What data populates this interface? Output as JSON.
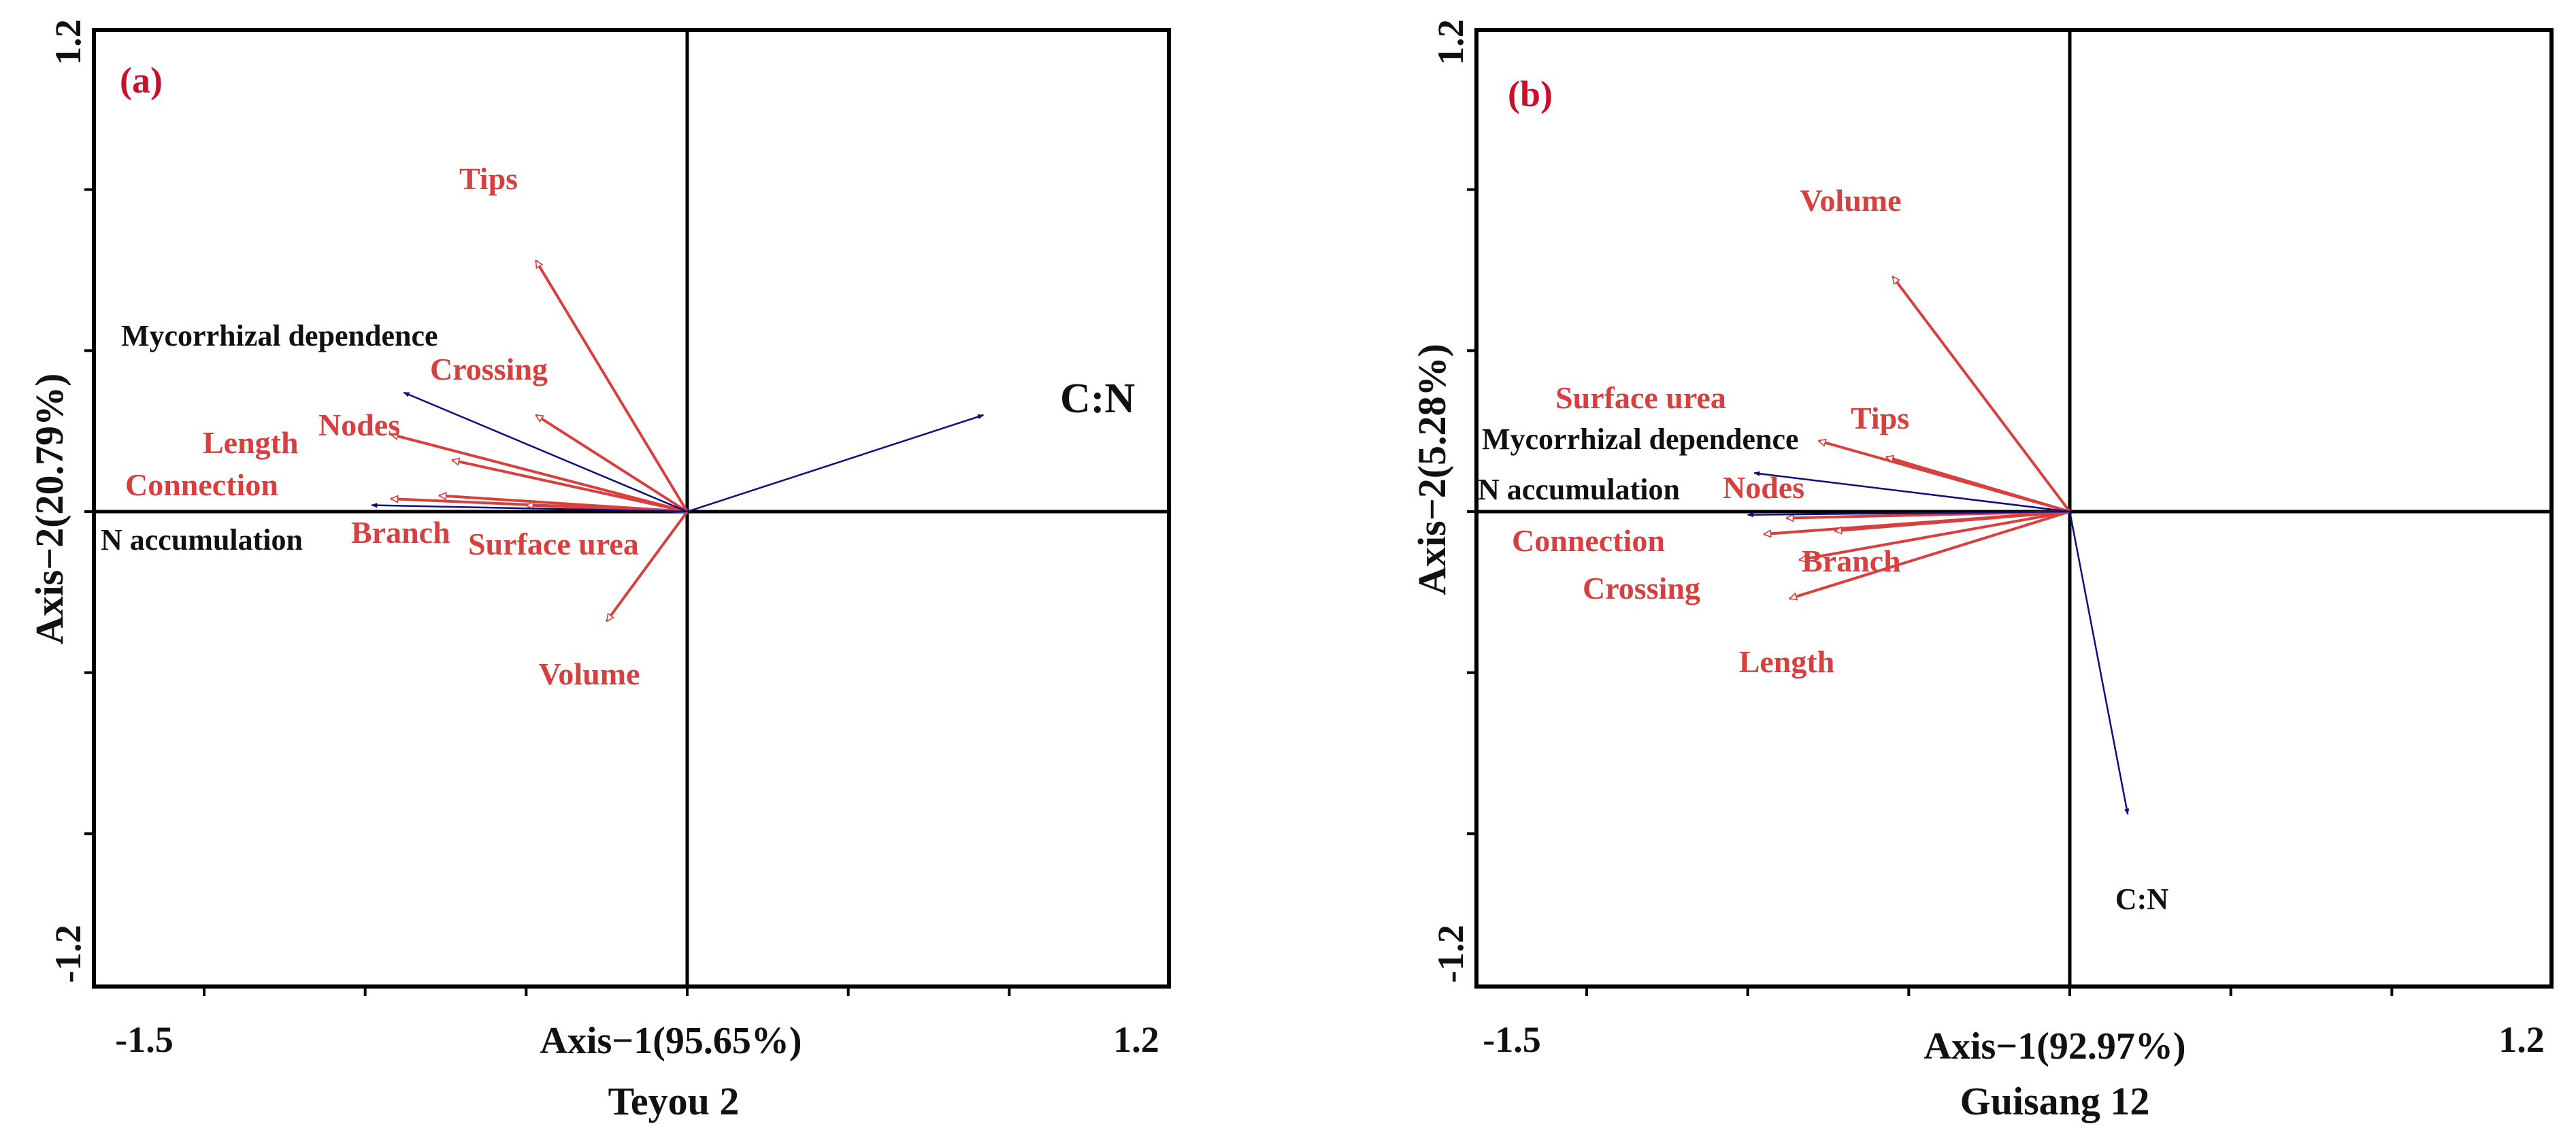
{
  "colors": {
    "response": "#d8403f",
    "explanatory": "#0d0f7a",
    "label_black": "#111111",
    "panel_tag": "#c8102e",
    "frame": "#000000"
  },
  "chart_data": [
    {
      "type": "scatter",
      "subtype": "rda-biplot",
      "panel": "(a)",
      "title": "Teyou 2",
      "xlabel": "Axis−1(95.65%)",
      "ylabel": "Axis−2(20.79%)",
      "xlim": [
        -1.5,
        1.2
      ],
      "ylim": [
        -1.2,
        1.2
      ],
      "x_ticks": [
        -1.5,
        -1.0,
        -0.5,
        0.0,
        0.5,
        1.0
      ],
      "x_tick_labels": [
        {
          "value": -1.5,
          "text": "-1.5"
        },
        {
          "value": 1.2,
          "text": "1.2"
        }
      ],
      "y_ticks": [
        -1.0,
        -0.5,
        0.0,
        0.5,
        1.0
      ],
      "y_tick_labels": [
        {
          "value": 1.2,
          "text": "1.2"
        },
        {
          "value": -1.2,
          "text": "-1.2"
        }
      ],
      "response_arrows": [
        {
          "label": "Tips",
          "x": -0.47,
          "y": 0.78
        },
        {
          "label": "Crossing",
          "x": -0.47,
          "y": 0.3
        },
        {
          "label": "Nodes",
          "x": -0.73,
          "y": 0.16
        },
        {
          "label": "Length",
          "x": -0.92,
          "y": 0.24
        },
        {
          "label": "Connection",
          "x": -0.92,
          "y": 0.04
        },
        {
          "label": "Branch",
          "x": -0.77,
          "y": 0.05
        },
        {
          "label": "Surface urea",
          "x": -0.5,
          "y": 0.02
        },
        {
          "label": "Volume",
          "x": -0.25,
          "y": -0.34
        }
      ],
      "explanatory_arrows": [
        {
          "label": "C:N",
          "x": 0.92,
          "y": 0.3
        },
        {
          "label": "Mycorrhizal dependence",
          "x": -0.88,
          "y": 0.37
        },
        {
          "label": "N accumulation",
          "x": -0.98,
          "y": 0.02
        }
      ]
    },
    {
      "type": "scatter",
      "subtype": "rda-biplot",
      "panel": "(b)",
      "title": "Guisang 12",
      "xlabel": "Axis−1(92.97%)",
      "ylabel": "Axis−2(5.28%)",
      "xlim": [
        -1.5,
        1.2
      ],
      "ylim": [
        -1.2,
        1.2
      ],
      "x_ticks": [
        -1.5,
        -1.0,
        -0.5,
        0.0,
        0.5,
        1.0
      ],
      "x_tick_labels": [
        {
          "value": -1.5,
          "text": "-1.5"
        },
        {
          "value": 1.2,
          "text": "1.2"
        }
      ],
      "y_ticks": [
        -1.0,
        -0.5,
        0.0,
        0.5,
        1.0
      ],
      "y_tick_labels": [
        {
          "value": 1.2,
          "text": "1.2"
        },
        {
          "value": -1.2,
          "text": "-1.2"
        }
      ],
      "response_arrows": [
        {
          "label": "Volume",
          "x": -0.55,
          "y": 0.73
        },
        {
          "label": "Surface urea",
          "x": -0.78,
          "y": 0.22
        },
        {
          "label": "Tips",
          "x": -0.57,
          "y": 0.17
        },
        {
          "label": "Nodes",
          "x": -0.88,
          "y": -0.02
        },
        {
          "label": "Connection",
          "x": -0.95,
          "y": -0.07
        },
        {
          "label": "Branch",
          "x": -0.73,
          "y": -0.06
        },
        {
          "label": "Crossing",
          "x": -0.84,
          "y": -0.15
        },
        {
          "label": "Length",
          "x": -0.87,
          "y": -0.27
        }
      ],
      "explanatory_arrows": [
        {
          "label": "C:N",
          "x": 0.18,
          "y": -0.94
        },
        {
          "label": "Mycorrhizal dependence",
          "x": -0.98,
          "y": 0.12
        },
        {
          "label": "N accumulation",
          "x": -1.0,
          "y": -0.01
        }
      ]
    }
  ]
}
